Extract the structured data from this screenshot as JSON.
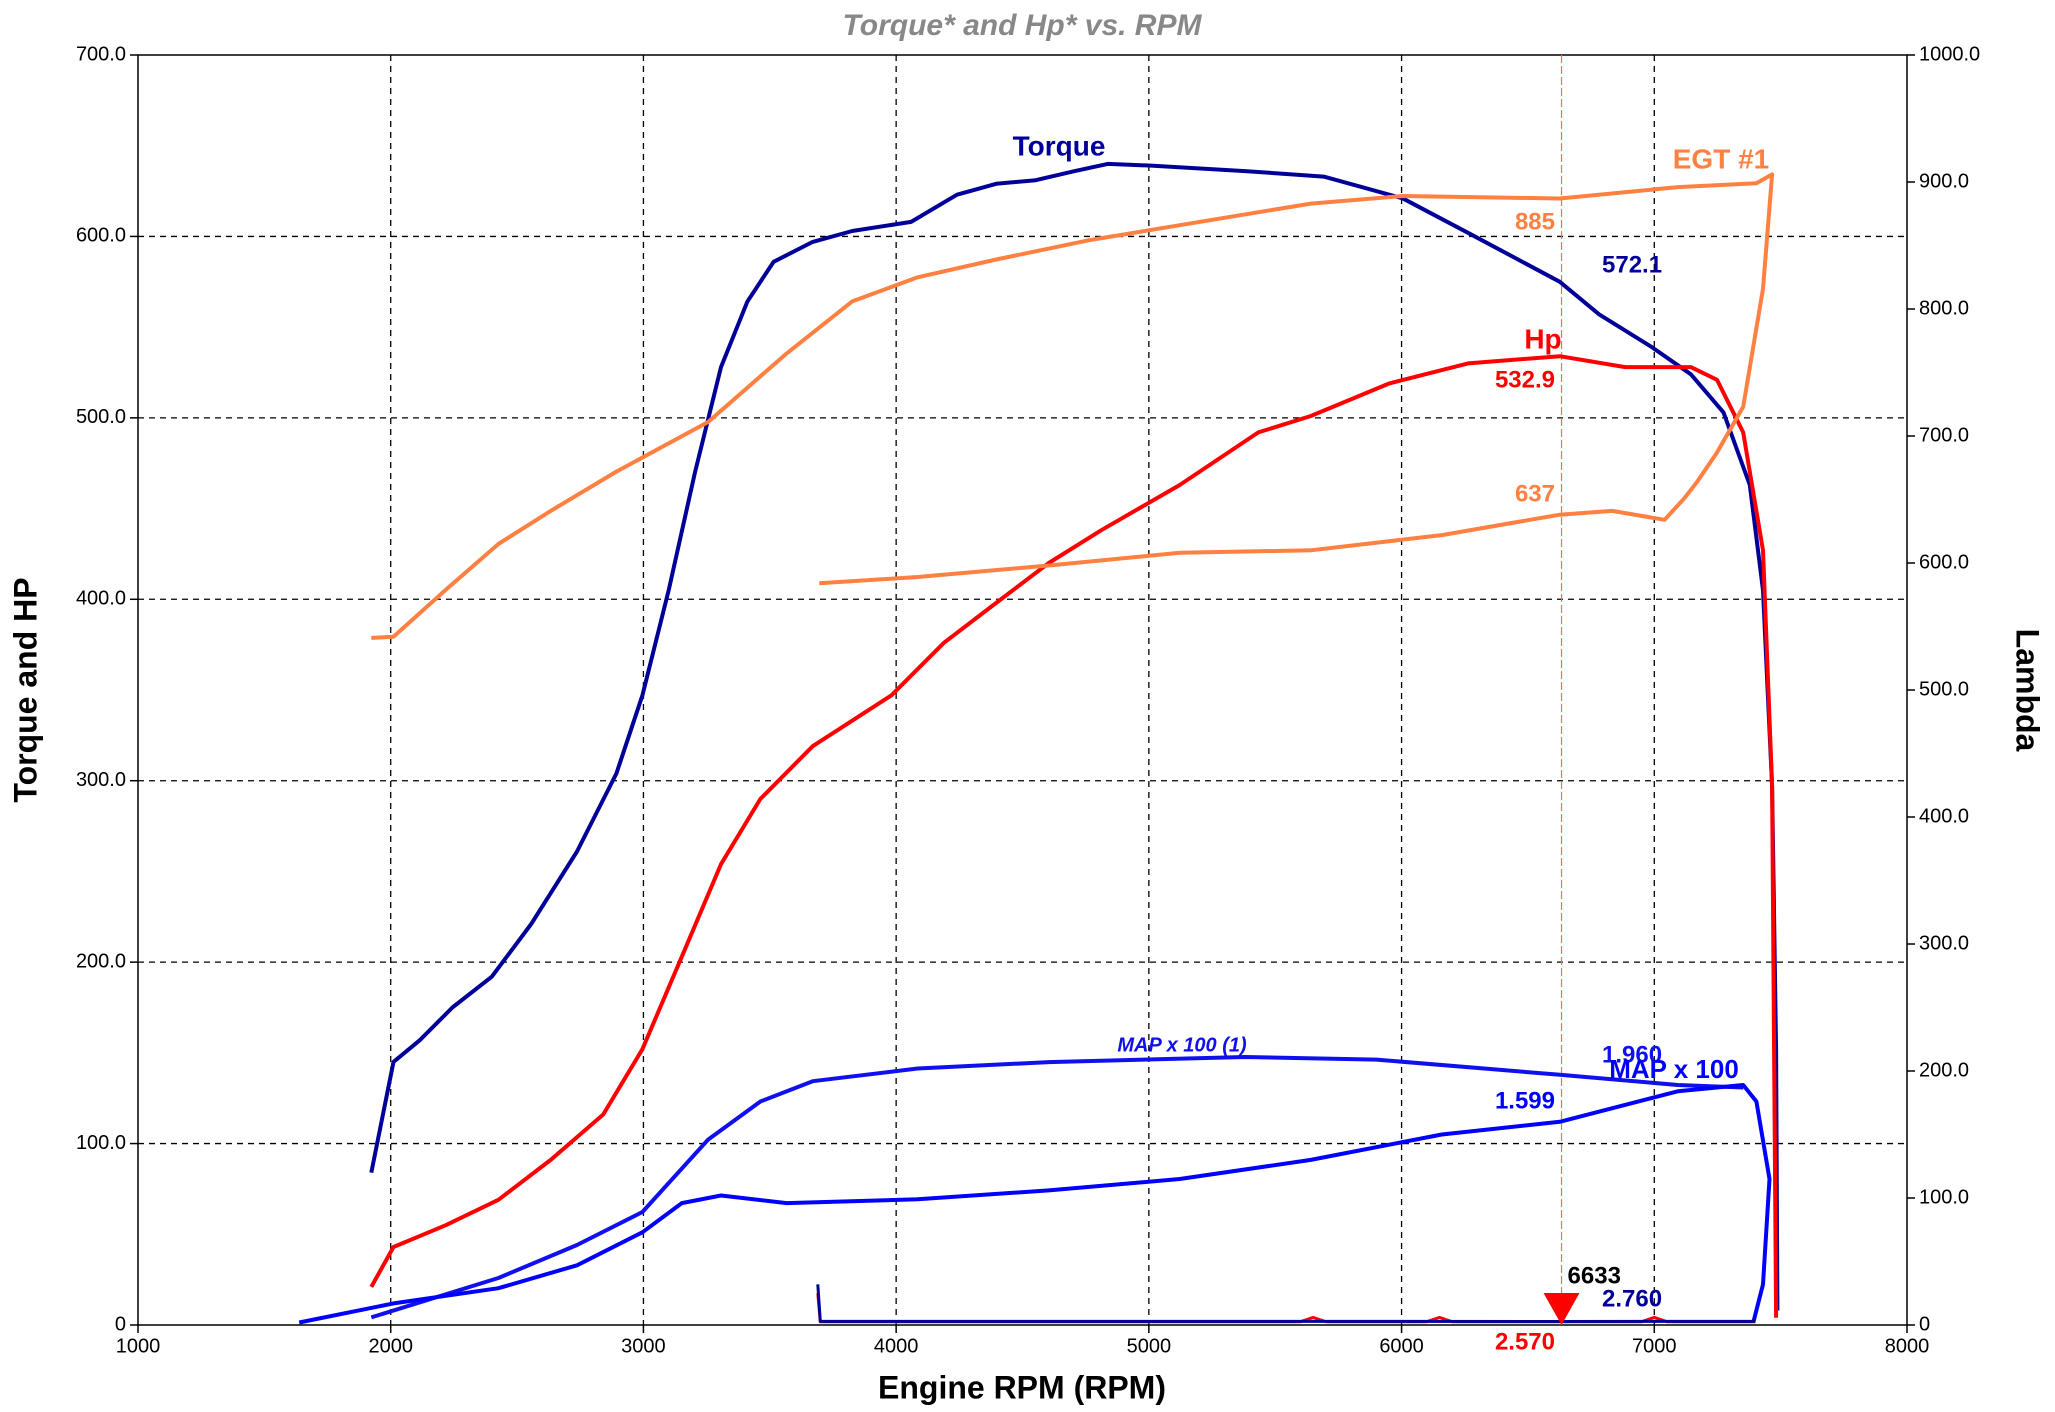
{
  "chart_data": {
    "type": "line",
    "title": "Torque* and Hp* vs. RPM",
    "x_label": "Engine RPM (RPM)",
    "y_label": "Torque and HP",
    "y2_label": "Lambda",
    "xlim": [
      1000,
      8000
    ],
    "xticks": [
      1000,
      2000,
      3000,
      4000,
      5000,
      6000,
      7000,
      8000
    ],
    "ylim": [
      0,
      700
    ],
    "yticks": [
      0,
      {
        "value": 100,
        "label": "100.0"
      },
      {
        "value": 200,
        "label": "200.0"
      },
      {
        "value": 300,
        "label": "300.0"
      },
      {
        "value": 400,
        "label": "400.0"
      },
      {
        "value": 500,
        "label": "500.0"
      },
      {
        "value": 600,
        "label": "600.0"
      },
      {
        "value": 700,
        "label": "700.0"
      }
    ],
    "y2lim": [
      0,
      1000
    ],
    "y2ticks": [
      0,
      {
        "value": 100,
        "label": "100.0"
      },
      {
        "value": 200,
        "label": "200.0"
      },
      {
        "value": 300,
        "label": "300.0"
      },
      {
        "value": 400,
        "label": "400.0"
      },
      {
        "value": 500,
        "label": "500.0"
      },
      {
        "value": 600,
        "label": "600.0"
      },
      {
        "value": 700,
        "label": "700.0"
      },
      {
        "value": 800,
        "label": "800.0"
      },
      {
        "value": 900,
        "label": "900.0"
      },
      {
        "value": 1000,
        "label": "1000.0"
      }
    ],
    "grid": true,
    "cursor_rpm": 6633,
    "cursor_color": "#ff6666",
    "series": [
      {
        "name": "Torque",
        "color": "#000099",
        "axis": "y",
        "cursor_value": 572.1,
        "x": [
          1923,
          2011,
          2115,
          2244,
          2400,
          2556,
          2737,
          2893,
          2996,
          3100,
          3204,
          3307,
          3411,
          3515,
          3670,
          3826,
          4059,
          4241,
          4396,
          4552,
          4707,
          4837,
          5018,
          5381,
          5692,
          6004,
          6263,
          6626,
          6782,
          6990,
          7145,
          7274,
          7378,
          7430,
          7466,
          7482,
          7487
        ],
        "values": [
          84,
          145,
          157,
          175,
          192,
          221,
          261,
          304,
          347,
          405,
          470,
          528,
          564,
          586,
          597,
          603,
          608,
          623,
          629,
          631,
          636,
          640,
          639,
          636,
          633,
          621,
          602,
          575,
          557,
          539,
          524,
          503,
          463,
          405,
          297,
          152,
          8
        ]
      },
      {
        "name": "Hp",
        "color": "#ff0000",
        "axis": "y",
        "cursor_value": 532.9,
        "x": [
          1923,
          2011,
          2218,
          2426,
          2633,
          2841,
          2996,
          3152,
          3307,
          3463,
          3670,
          3981,
          4189,
          4396,
          4604,
          4811,
          5122,
          5433,
          5641,
          5952,
          6263,
          6626,
          6885,
          7145,
          7248,
          7352,
          7430,
          7466,
          7482
        ],
        "values": [
          21,
          43,
          55,
          69,
          91,
          116,
          152,
          203,
          254,
          290,
          319,
          347,
          376,
          398,
          420,
          438,
          463,
          492,
          501,
          519,
          530,
          534,
          528,
          528,
          521,
          492,
          427,
          297,
          4
        ]
      },
      {
        "name": "EGT #1",
        "color": "#ff8040",
        "axis": "y2",
        "cursor_values": [
          885,
          637
        ],
        "x": [
          1923,
          2011,
          2218,
          2426,
          2633,
          2893,
          3256,
          3567,
          3826,
          4085,
          4396,
          4759,
          5122,
          5641,
          6004,
          6626,
          7093,
          7404,
          7466,
          7430,
          7352,
          7248,
          7170,
          7119,
          7041,
          6833,
          6626,
          6159,
          5641,
          5122,
          4604,
          4085,
          3696
        ],
        "values": [
          541,
          542,
          579,
          615,
          641,
          672,
          711,
          765,
          806,
          825,
          839,
          854,
          866,
          883,
          889,
          887,
          896,
          899,
          906,
          816,
          723,
          687,
          664,
          651,
          634,
          641,
          638,
          622,
          610,
          608,
          598,
          589,
          584
        ]
      },
      {
        "name": "MAP x 100 (1)",
        "color": "#1010ee",
        "axis": "y2",
        "cursor_value": 196,
        "cursor_value_label": "1.960",
        "x": [
          1923,
          2426,
          2737,
          2996,
          3256,
          3463,
          3670,
          4085,
          4604,
          5381,
          5900,
          6626,
          7093,
          7352
        ],
        "values": [
          6,
          37,
          63,
          89,
          146,
          176,
          192,
          202,
          207,
          211,
          209,
          197,
          189,
          187
        ]
      },
      {
        "name": "MAP x 100",
        "color": "#0000ff",
        "axis": "y2",
        "cursor_value": 160,
        "cursor_value_label": "1.599",
        "x": [
          1638,
          2011,
          2426,
          2737,
          2996,
          3152,
          3307,
          3567,
          4085,
          4604,
          5122,
          5641,
          6159,
          6626,
          7093,
          7352,
          7404,
          7456,
          7430,
          7393
        ],
        "values": [
          2,
          17,
          29,
          47,
          73,
          96,
          102,
          96,
          99,
          106,
          115,
          130,
          150,
          160,
          184,
          189,
          176,
          115,
          32,
          3
        ]
      },
      {
        "color": "#ff0000",
        "axis": "y2",
        "cursor_value": 2.57,
        "cursor_value_label": "2.570",
        "x": [
          3690,
          3700,
          4000,
          5000,
          5600,
          5650,
          5700,
          6100,
          6150,
          6200,
          6600,
          6633,
          6950,
          7000,
          7050,
          7400
        ],
        "values": [
          25,
          2.6,
          2.6,
          2.6,
          2.6,
          6,
          2.6,
          2.6,
          6,
          2.6,
          2.6,
          2.57,
          2.6,
          6,
          2.6,
          2.6
        ]
      },
      {
        "color": "#000099",
        "axis": "y2",
        "cursor_value": 2.76,
        "cursor_value_label": "2.760",
        "x": [
          3690,
          3700,
          4000,
          5000,
          6000,
          6633,
          7000,
          7400
        ],
        "values": [
          32,
          2.8,
          2.8,
          2.8,
          2.8,
          2.76,
          2.8,
          2.8
        ]
      }
    ]
  }
}
